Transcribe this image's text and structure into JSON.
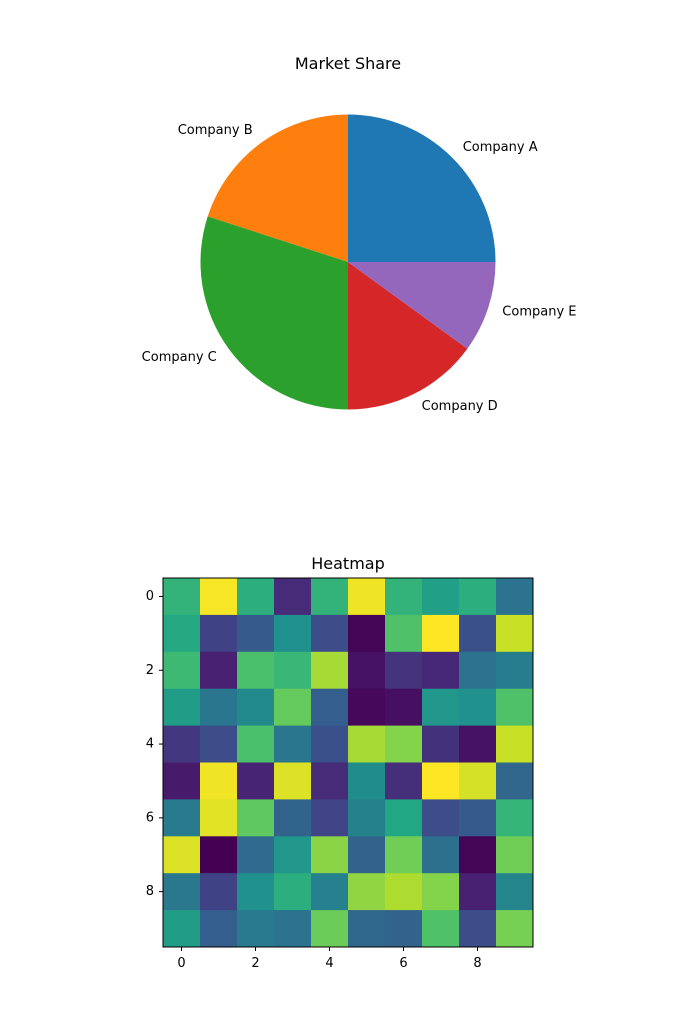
{
  "chart_data": [
    {
      "type": "pie",
      "title": "Market Share",
      "labels": [
        "Company A",
        "Company B",
        "Company C",
        "Company D",
        "Company E"
      ],
      "values": [
        25,
        20,
        30,
        15,
        10
      ],
      "colors": [
        "#1f77b4",
        "#ff7f0e",
        "#2ca02c",
        "#d62728",
        "#9467bd"
      ],
      "start_angle": 0,
      "direction": "counterclockwise"
    },
    {
      "type": "heatmap",
      "title": "Heatmap",
      "colormap": "viridis",
      "x_ticks": [
        0,
        2,
        4,
        6,
        8
      ],
      "y_ticks": [
        0,
        2,
        4,
        6,
        8
      ],
      "values": [
        [
          0.64,
          0.97,
          0.62,
          0.13,
          0.64,
          0.96,
          0.64,
          0.56,
          0.62,
          0.38
        ],
        [
          0.6,
          0.2,
          0.29,
          0.5,
          0.24,
          0.02,
          0.71,
          0.98,
          0.25,
          0.9
        ],
        [
          0.67,
          0.1,
          0.7,
          0.66,
          0.85,
          0.06,
          0.16,
          0.12,
          0.38,
          0.42
        ],
        [
          0.55,
          0.39,
          0.47,
          0.75,
          0.3,
          0.03,
          0.05,
          0.52,
          0.5,
          0.71
        ],
        [
          0.17,
          0.24,
          0.7,
          0.39,
          0.25,
          0.85,
          0.8,
          0.15,
          0.06,
          0.9
        ],
        [
          0.08,
          0.96,
          0.11,
          0.93,
          0.13,
          0.48,
          0.14,
          0.98,
          0.92,
          0.33
        ],
        [
          0.41,
          0.94,
          0.74,
          0.32,
          0.21,
          0.44,
          0.59,
          0.24,
          0.29,
          0.65
        ],
        [
          0.93,
          0.01,
          0.35,
          0.52,
          0.81,
          0.32,
          0.77,
          0.37,
          0.02,
          0.77
        ],
        [
          0.4,
          0.2,
          0.5,
          0.62,
          0.43,
          0.82,
          0.86,
          0.8,
          0.1,
          0.45
        ],
        [
          0.55,
          0.3,
          0.41,
          0.38,
          0.76,
          0.34,
          0.32,
          0.71,
          0.24,
          0.78
        ]
      ]
    }
  ]
}
